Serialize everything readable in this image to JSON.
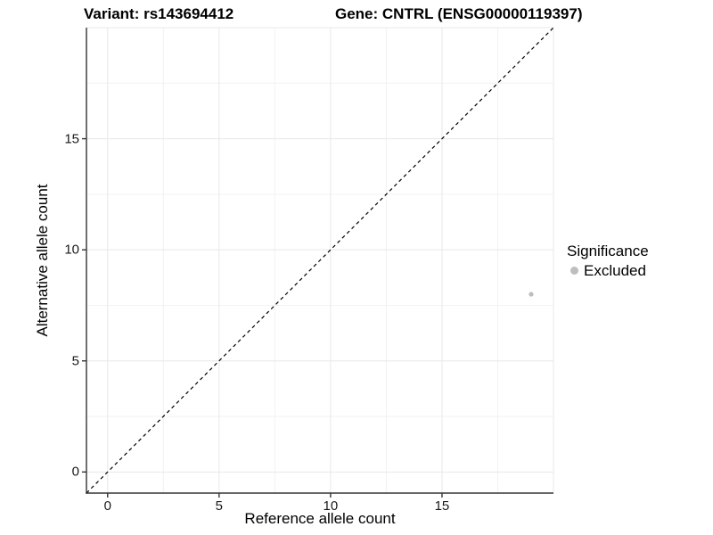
{
  "header": {
    "title_left": "Variant: rs143694412",
    "title_right": "Gene: CNTRL (ENSG00000119397)"
  },
  "legend": {
    "title": "Significance"
  },
  "chart_data": {
    "type": "scatter",
    "title_left": "Variant: rs143694412",
    "title_right": "Gene: CNTRL (ENSG00000119397)",
    "xlabel": "Reference allele count",
    "ylabel": "Alternative allele count",
    "xlim": [
      -0.95,
      20
    ],
    "ylim": [
      -0.95,
      20
    ],
    "x_ticks": [
      0,
      5,
      10,
      15
    ],
    "y_ticks": [
      0,
      5,
      10,
      15
    ],
    "grid": {
      "major": [
        0,
        5,
        10,
        15,
        20
      ],
      "minor": [
        2.5,
        7.5,
        12.5,
        17.5
      ],
      "major_color": "#e8e8e8",
      "minor_color": "#f2f2f2"
    },
    "identity_line": {
      "slope": 1,
      "intercept": 0,
      "style": "dashed",
      "color": "#000000"
    },
    "axis_color": "#333333",
    "legend_position": "right",
    "series": [
      {
        "name": "Excluded",
        "color": "#bebebe",
        "point_radius": 2.6,
        "points": [
          {
            "x": 19,
            "y": 8
          }
        ]
      }
    ]
  }
}
